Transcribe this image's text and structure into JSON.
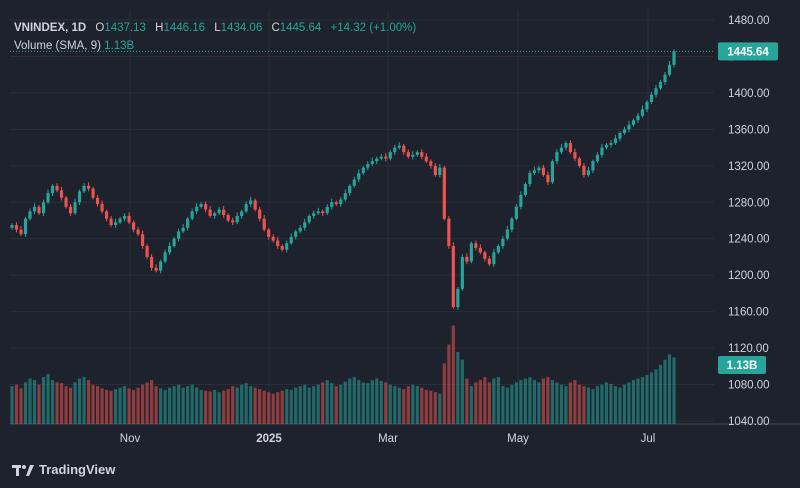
{
  "legend": {
    "symbol": "VNINDEX, 1D",
    "open_label": "O",
    "open": "1437.13",
    "high_label": "H",
    "high": "1446.16",
    "low_label": "L",
    "low": "1434.06",
    "close_label": "C",
    "close": "1445.64",
    "change": "+14.32 (+1.00%)",
    "volume_label": "Volume (SMA, 9)",
    "volume_value": "1.13B"
  },
  "branding": {
    "name": "TradingView"
  },
  "colors": {
    "up": "#26a69a",
    "down": "#ef5350",
    "background": "#1e222d",
    "grid": "#2a2e39",
    "text": "#d1d4dc"
  },
  "chart_data": {
    "type": "candlestick",
    "title": "VNINDEX, 1D",
    "ylim": [
      1040,
      1480
    ],
    "y_ticks": [
      1040,
      1080,
      1120,
      1160,
      1200,
      1240,
      1280,
      1320,
      1360,
      1400,
      1440,
      1480
    ],
    "y_tick_labels": [
      "1040.00",
      "1080.00",
      "1120.00",
      "1160.00",
      "1200.00",
      "1240.00",
      "1280.00",
      "1320.00",
      "1360.00",
      "1400.00",
      "1440.00",
      "1480.00"
    ],
    "x_labels": [
      "Nov",
      "2025",
      "Mar",
      "May",
      "Jul"
    ],
    "last_price": 1445.64,
    "last_price_label": "1445.64",
    "last_volume_label": "1.13B",
    "volume_max": 1.4,
    "closes": [
      1255,
      1250,
      1245,
      1262,
      1270,
      1275,
      1268,
      1280,
      1290,
      1298,
      1293,
      1285,
      1275,
      1268,
      1280,
      1292,
      1298,
      1295,
      1285,
      1278,
      1270,
      1262,
      1255,
      1258,
      1262,
      1265,
      1258,
      1250,
      1245,
      1232,
      1220,
      1208,
      1205,
      1215,
      1225,
      1232,
      1240,
      1248,
      1252,
      1262,
      1270,
      1275,
      1278,
      1272,
      1265,
      1268,
      1272,
      1266,
      1260,
      1258,
      1265,
      1270,
      1278,
      1282,
      1272,
      1262,
      1250,
      1242,
      1238,
      1232,
      1228,
      1235,
      1242,
      1248,
      1252,
      1258,
      1265,
      1268,
      1270,
      1268,
      1275,
      1280,
      1278,
      1283,
      1290,
      1298,
      1305,
      1312,
      1318,
      1322,
      1325,
      1328,
      1330,
      1328,
      1335,
      1340,
      1342,
      1335,
      1330,
      1332,
      1335,
      1330,
      1325,
      1320,
      1310,
      1318,
      1262,
      1232,
      1165,
      1185,
      1220,
      1215,
      1235,
      1230,
      1225,
      1218,
      1212,
      1225,
      1232,
      1240,
      1250,
      1262,
      1275,
      1288,
      1300,
      1312,
      1315,
      1318,
      1310,
      1302,
      1325,
      1335,
      1340,
      1345,
      1335,
      1328,
      1320,
      1310,
      1315,
      1325,
      1332,
      1340,
      1343,
      1345,
      1350,
      1356,
      1360,
      1365,
      1370,
      1375,
      1382,
      1390,
      1398,
      1405,
      1412,
      1420,
      1431,
      1445.64
    ],
    "volumes": [
      0.5,
      0.52,
      0.47,
      0.55,
      0.6,
      0.58,
      0.52,
      0.62,
      0.66,
      0.58,
      0.55,
      0.54,
      0.5,
      0.48,
      0.55,
      0.6,
      0.62,
      0.58,
      0.52,
      0.5,
      0.47,
      0.45,
      0.44,
      0.46,
      0.48,
      0.5,
      0.47,
      0.45,
      0.48,
      0.52,
      0.55,
      0.58,
      0.5,
      0.47,
      0.45,
      0.48,
      0.5,
      0.52,
      0.48,
      0.5,
      0.52,
      0.48,
      0.45,
      0.44,
      0.43,
      0.45,
      0.42,
      0.44,
      0.46,
      0.5,
      0.48,
      0.52,
      0.54,
      0.5,
      0.48,
      0.46,
      0.44,
      0.42,
      0.4,
      0.42,
      0.44,
      0.46,
      0.45,
      0.48,
      0.5,
      0.52,
      0.48,
      0.5,
      0.52,
      0.55,
      0.58,
      0.54,
      0.5,
      0.52,
      0.56,
      0.6,
      0.62,
      0.58,
      0.55,
      0.54,
      0.58,
      0.6,
      0.57,
      0.55,
      0.52,
      0.5,
      0.48,
      0.46,
      0.5,
      0.52,
      0.5,
      0.48,
      0.45,
      0.44,
      0.42,
      0.4,
      0.8,
      1.05,
      1.3,
      0.95,
      0.85,
      0.6,
      0.5,
      0.55,
      0.58,
      0.62,
      0.55,
      0.6,
      0.62,
      0.5,
      0.48,
      0.52,
      0.55,
      0.58,
      0.6,
      0.62,
      0.58,
      0.55,
      0.6,
      0.62,
      0.58,
      0.55,
      0.52,
      0.5,
      0.55,
      0.58,
      0.52,
      0.5,
      0.48,
      0.46,
      0.5,
      0.52,
      0.55,
      0.53,
      0.5,
      0.48,
      0.52,
      0.55,
      0.58,
      0.6,
      0.62,
      0.65,
      0.68,
      0.72,
      0.78,
      0.85,
      0.92,
      0.88
    ]
  }
}
